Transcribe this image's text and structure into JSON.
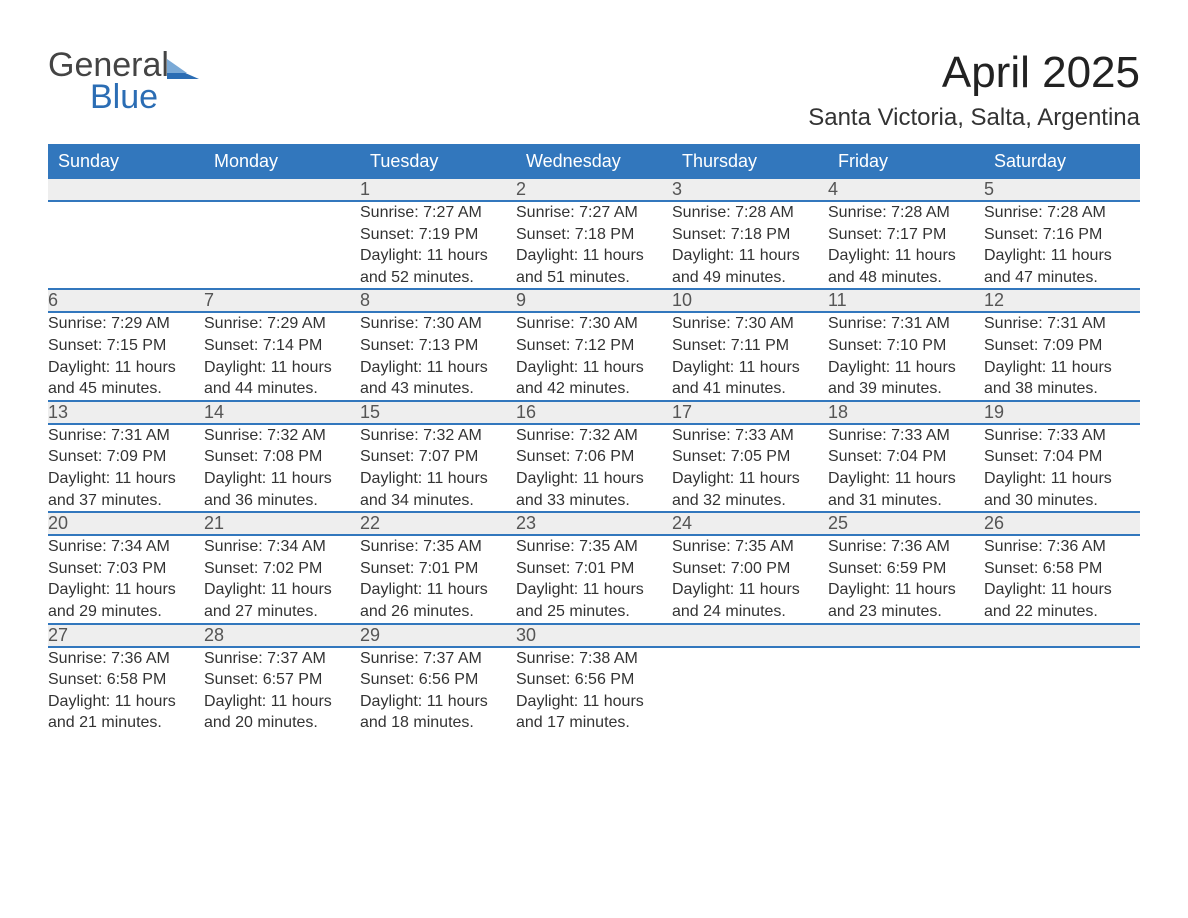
{
  "branding": {
    "word1": "General",
    "word2": "Blue",
    "flag_color": "#2b6db4",
    "word1_color": "#444444",
    "word2_color": "#2b6db4"
  },
  "header": {
    "title": "April 2025",
    "subtitle": "Santa Victoria, Salta, Argentina"
  },
  "colors": {
    "th_bg": "#3277bd",
    "th_fg": "#ffffff",
    "daynum_bg": "#eeeeee",
    "text": "#333333",
    "page_bg": "#ffffff"
  },
  "weekday_labels": [
    "Sunday",
    "Monday",
    "Tuesday",
    "Wednesday",
    "Thursday",
    "Friday",
    "Saturday"
  ],
  "weeks": [
    [
      null,
      null,
      {
        "n": "1",
        "sr": "7:27 AM",
        "ss": "7:19 PM",
        "dl": "11 hours and 52 minutes."
      },
      {
        "n": "2",
        "sr": "7:27 AM",
        "ss": "7:18 PM",
        "dl": "11 hours and 51 minutes."
      },
      {
        "n": "3",
        "sr": "7:28 AM",
        "ss": "7:18 PM",
        "dl": "11 hours and 49 minutes."
      },
      {
        "n": "4",
        "sr": "7:28 AM",
        "ss": "7:17 PM",
        "dl": "11 hours and 48 minutes."
      },
      {
        "n": "5",
        "sr": "7:28 AM",
        "ss": "7:16 PM",
        "dl": "11 hours and 47 minutes."
      }
    ],
    [
      {
        "n": "6",
        "sr": "7:29 AM",
        "ss": "7:15 PM",
        "dl": "11 hours and 45 minutes."
      },
      {
        "n": "7",
        "sr": "7:29 AM",
        "ss": "7:14 PM",
        "dl": "11 hours and 44 minutes."
      },
      {
        "n": "8",
        "sr": "7:30 AM",
        "ss": "7:13 PM",
        "dl": "11 hours and 43 minutes."
      },
      {
        "n": "9",
        "sr": "7:30 AM",
        "ss": "7:12 PM",
        "dl": "11 hours and 42 minutes."
      },
      {
        "n": "10",
        "sr": "7:30 AM",
        "ss": "7:11 PM",
        "dl": "11 hours and 41 minutes."
      },
      {
        "n": "11",
        "sr": "7:31 AM",
        "ss": "7:10 PM",
        "dl": "11 hours and 39 minutes."
      },
      {
        "n": "12",
        "sr": "7:31 AM",
        "ss": "7:09 PM",
        "dl": "11 hours and 38 minutes."
      }
    ],
    [
      {
        "n": "13",
        "sr": "7:31 AM",
        "ss": "7:09 PM",
        "dl": "11 hours and 37 minutes."
      },
      {
        "n": "14",
        "sr": "7:32 AM",
        "ss": "7:08 PM",
        "dl": "11 hours and 36 minutes."
      },
      {
        "n": "15",
        "sr": "7:32 AM",
        "ss": "7:07 PM",
        "dl": "11 hours and 34 minutes."
      },
      {
        "n": "16",
        "sr": "7:32 AM",
        "ss": "7:06 PM",
        "dl": "11 hours and 33 minutes."
      },
      {
        "n": "17",
        "sr": "7:33 AM",
        "ss": "7:05 PM",
        "dl": "11 hours and 32 minutes."
      },
      {
        "n": "18",
        "sr": "7:33 AM",
        "ss": "7:04 PM",
        "dl": "11 hours and 31 minutes."
      },
      {
        "n": "19",
        "sr": "7:33 AM",
        "ss": "7:04 PM",
        "dl": "11 hours and 30 minutes."
      }
    ],
    [
      {
        "n": "20",
        "sr": "7:34 AM",
        "ss": "7:03 PM",
        "dl": "11 hours and 29 minutes."
      },
      {
        "n": "21",
        "sr": "7:34 AM",
        "ss": "7:02 PM",
        "dl": "11 hours and 27 minutes."
      },
      {
        "n": "22",
        "sr": "7:35 AM",
        "ss": "7:01 PM",
        "dl": "11 hours and 26 minutes."
      },
      {
        "n": "23",
        "sr": "7:35 AM",
        "ss": "7:01 PM",
        "dl": "11 hours and 25 minutes."
      },
      {
        "n": "24",
        "sr": "7:35 AM",
        "ss": "7:00 PM",
        "dl": "11 hours and 24 minutes."
      },
      {
        "n": "25",
        "sr": "7:36 AM",
        "ss": "6:59 PM",
        "dl": "11 hours and 23 minutes."
      },
      {
        "n": "26",
        "sr": "7:36 AM",
        "ss": "6:58 PM",
        "dl": "11 hours and 22 minutes."
      }
    ],
    [
      {
        "n": "27",
        "sr": "7:36 AM",
        "ss": "6:58 PM",
        "dl": "11 hours and 21 minutes."
      },
      {
        "n": "28",
        "sr": "7:37 AM",
        "ss": "6:57 PM",
        "dl": "11 hours and 20 minutes."
      },
      {
        "n": "29",
        "sr": "7:37 AM",
        "ss": "6:56 PM",
        "dl": "11 hours and 18 minutes."
      },
      {
        "n": "30",
        "sr": "7:38 AM",
        "ss": "6:56 PM",
        "dl": "11 hours and 17 minutes."
      },
      null,
      null,
      null
    ]
  ],
  "labels": {
    "sunrise_prefix": "Sunrise: ",
    "sunset_prefix": "Sunset: ",
    "daylight_prefix": "Daylight: "
  }
}
